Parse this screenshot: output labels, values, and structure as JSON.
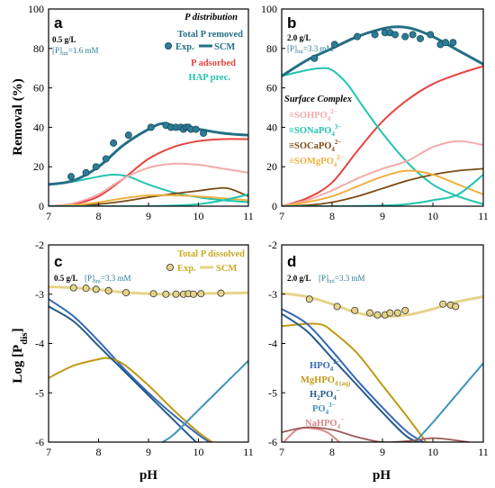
{
  "figure": {
    "xlabel": "pH",
    "ylabel_top": "Removal (%)",
    "ylabel_bottom": "Log [P",
    "ylabel_bottom_sub": "dis",
    "ylabel_bottom_end": "]"
  },
  "chart_data": [
    {
      "panel": "a",
      "type": "line",
      "letter": "a",
      "dose": "0.5 g/L",
      "conc_pre": "[P]",
      "conc_sub": "ini",
      "conc_post": "=1.6 mM",
      "xlim": [
        7,
        11
      ],
      "ylim": [
        0,
        100
      ],
      "xticks": [
        "7",
        "8",
        "9",
        "10",
        "11"
      ],
      "yticks": [
        "0",
        "20",
        "40",
        "60",
        "80",
        "100"
      ],
      "legend": {
        "heading": "P distribution",
        "total": "Total P removed",
        "exp": "Exp.",
        "scm": "SCM",
        "adsorbed": "P adsorbed",
        "hap": "HAP prec."
      },
      "colors": {
        "total": "#236f86",
        "points": "#2c7d96",
        "adsorbed": "#e8433f",
        "hap": "#22c4b0",
        "h": "#f3aaaa",
        "ca": "#7a4a12",
        "mg": "#f0b040",
        "na": "#22c4b0"
      },
      "series": [
        {
          "name": "Total P removed",
          "key": "total",
          "x": [
            7.0,
            7.5,
            8.0,
            8.5,
            9.0,
            9.3,
            9.6,
            10.0,
            10.5,
            11.0
          ],
          "y": [
            11,
            13,
            20,
            31,
            39,
            42,
            40,
            39,
            37,
            36
          ]
        },
        {
          "name": "P adsorbed",
          "key": "adsorbed",
          "x": [
            7.0,
            7.5,
            8.0,
            8.5,
            9.0,
            9.5,
            10.0,
            10.5,
            11.0
          ],
          "y": [
            0,
            1,
            5,
            14,
            24,
            30,
            33,
            34,
            34
          ]
        },
        {
          "name": "HAP prec.",
          "key": "hap",
          "x": [
            7.0,
            7.5,
            8.0,
            8.3,
            8.6,
            9.0,
            9.5,
            10.0,
            10.5,
            11.0
          ],
          "y": [
            11,
            12.5,
            15,
            16,
            15,
            11,
            7,
            4.5,
            3,
            2
          ]
        },
        {
          "key": "h",
          "x": [
            7.0,
            7.5,
            8.0,
            8.5,
            9.0,
            9.5,
            10.0,
            10.5,
            11.0
          ],
          "y": [
            0,
            1.5,
            6,
            14,
            19.5,
            21.5,
            21,
            19,
            17
          ]
        },
        {
          "key": "ca",
          "x": [
            7.0,
            7.5,
            8.0,
            8.5,
            9.0,
            9.5,
            10.0,
            10.3,
            10.6,
            11.0
          ],
          "y": [
            0,
            0.3,
            1,
            2.5,
            4.5,
            6.3,
            7.8,
            8.8,
            9,
            5
          ]
        },
        {
          "key": "mg",
          "x": [
            7.0,
            7.5,
            8.0,
            8.5,
            9.0,
            9.5,
            10.0,
            10.5,
            11.0
          ],
          "y": [
            0,
            0.5,
            2,
            4,
            5.5,
            5.5,
            5,
            4,
            3
          ]
        },
        {
          "key": "na",
          "x": [
            7.0,
            8.0,
            9.0,
            9.5,
            10.0,
            10.5,
            11.0
          ],
          "y": [
            0,
            0,
            0,
            0.3,
            1,
            3,
            6
          ]
        }
      ],
      "points": {
        "x": [
          7.45,
          7.75,
          7.95,
          8.15,
          8.3,
          8.6,
          9.05,
          9.35,
          9.45,
          9.55,
          9.65,
          9.7,
          9.75,
          9.8,
          9.85,
          9.95,
          10.1
        ],
        "y": [
          15,
          17,
          20,
          24,
          32,
          36,
          40,
          41,
          40,
          40,
          40,
          39,
          40,
          40,
          39,
          39,
          37
        ]
      }
    },
    {
      "panel": "b",
      "type": "line",
      "letter": "b",
      "dose": "2.0 g/L",
      "conc_pre": "[P]",
      "conc_sub": "ini",
      "conc_post": "=3.3 mM",
      "xlim": [
        7,
        11
      ],
      "ylim": [
        0,
        100
      ],
      "xticks": [
        "7",
        "8",
        "9",
        "10",
        "11"
      ],
      "yticks": [
        "0",
        "20",
        "40",
        "60",
        "80",
        "100"
      ],
      "legend": {
        "heading": "Surface Complex",
        "h_pre": "≡SOHPO",
        "h_sub": "4",
        "h_sup": "2−",
        "na_pre": "≡SONaPO",
        "na_sub": "4",
        "na_sup": "3−",
        "ca_pre": "≡SOCaPO",
        "ca_sub": "4",
        "ca_sup": "2−",
        "mg_pre": "≡SOMgPO",
        "mg_sub": "4",
        "mg_sup": "2−"
      },
      "colors": {
        "total": "#236f86",
        "points": "#2c7d96",
        "adsorbed": "#e8433f",
        "hap": "#22c4b0",
        "h": "#f3aaaa",
        "ca": "#7a4a12",
        "mg": "#f0b040",
        "na": "#22c4b0"
      },
      "series": [
        {
          "key": "total",
          "x": [
            7.0,
            7.5,
            8.0,
            8.5,
            9.0,
            9.3,
            9.6,
            10.0,
            10.5,
            11.0
          ],
          "y": [
            66,
            74,
            80,
            86,
            90,
            91,
            90,
            86,
            79,
            72
          ]
        },
        {
          "key": "adsorbed",
          "x": [
            7.0,
            7.5,
            8.0,
            8.5,
            9.0,
            9.5,
            10.0,
            10.5,
            11.0
          ],
          "y": [
            0,
            4,
            12,
            28,
            43,
            54,
            62,
            67,
            71
          ]
        },
        {
          "key": "hap",
          "x": [
            7.0,
            7.5,
            7.8,
            8.0,
            8.3,
            8.6,
            9.0,
            9.5,
            10.0,
            10.5,
            11.0
          ],
          "y": [
            66,
            69,
            70,
            69,
            62,
            51,
            37,
            22,
            11,
            5,
            1
          ]
        },
        {
          "key": "h",
          "x": [
            7.0,
            7.5,
            8.0,
            8.5,
            9.0,
            9.5,
            10.0,
            10.5,
            11.0
          ],
          "y": [
            0,
            3,
            8,
            14,
            19,
            23,
            30,
            33,
            31
          ]
        },
        {
          "key": "ca",
          "x": [
            7.0,
            7.5,
            8.0,
            8.5,
            9.0,
            9.5,
            10.0,
            10.5,
            11.0
          ],
          "y": [
            0,
            0.5,
            2,
            5,
            9,
            13,
            16,
            18,
            19
          ]
        },
        {
          "key": "mg",
          "x": [
            7.0,
            7.5,
            8.0,
            8.5,
            9.0,
            9.5,
            10.0,
            10.5,
            11.0
          ],
          "y": [
            0,
            2,
            5,
            10,
            15,
            18,
            16,
            11,
            6
          ]
        },
        {
          "key": "na",
          "x": [
            7.0,
            8.0,
            9.0,
            9.5,
            10.0,
            10.5,
            11.0
          ],
          "y": [
            0,
            0,
            0.3,
            1,
            3,
            6,
            16
          ]
        }
      ],
      "points": {
        "x": [
          7.65,
          8.05,
          8.5,
          8.85,
          9.05,
          9.15,
          9.25,
          9.45,
          9.6,
          9.75,
          9.95,
          10.15,
          10.25,
          10.4
        ],
        "y": [
          75,
          82,
          86,
          87,
          88,
          88,
          87,
          86,
          87,
          85,
          87,
          82,
          83,
          83
        ]
      }
    },
    {
      "panel": "c",
      "type": "line",
      "letter": "c",
      "dose": "0.5 g/L",
      "conc_pre": "[P]",
      "conc_sub": "ini",
      "conc_post": "=3.3 mM",
      "xlim": [
        7,
        11
      ],
      "ylim": [
        -6,
        -2
      ],
      "xticks": [
        "7",
        "8",
        "9",
        "10",
        "11"
      ],
      "yticks": [
        "-6",
        "-5",
        "-4",
        "-3",
        "-2"
      ],
      "legend": {
        "total": "Total P dissolved",
        "exp": "Exp.",
        "scm": "SCM"
      },
      "colors": {
        "total": "#e6d389",
        "hpo4": "#3668b8",
        "mghpo4": "#c09a14",
        "h2po4": "#235a8a",
        "po4": "#3f93b8",
        "nahpo4": "#d88a86"
      },
      "series": [
        {
          "key": "total",
          "x": [
            7.0,
            7.5,
            8.0,
            8.5,
            9.0,
            9.5,
            10.0,
            10.5,
            11.0
          ],
          "y": [
            -2.85,
            -2.87,
            -2.91,
            -2.96,
            -2.99,
            -3.0,
            -2.99,
            -2.98,
            -2.97
          ]
        },
        {
          "key": "hpo4",
          "x": [
            7.0,
            7.5,
            8.0,
            8.5,
            9.0,
            9.5,
            10.0,
            10.3
          ],
          "y": [
            -3.1,
            -3.45,
            -3.95,
            -4.5,
            -5.0,
            -5.45,
            -5.85,
            -6.05
          ]
        },
        {
          "key": "mghpo4",
          "x": [
            7.0,
            7.5,
            8.0,
            8.2,
            8.5,
            9.0,
            9.5,
            10.0,
            10.35
          ],
          "y": [
            -4.7,
            -4.45,
            -4.32,
            -4.3,
            -4.42,
            -4.85,
            -5.35,
            -5.8,
            -6.05
          ]
        },
        {
          "key": "h2po4",
          "x": [
            7.0,
            7.5,
            8.0,
            8.5,
            9.0,
            9.5,
            10.0
          ],
          "y": [
            -3.25,
            -3.55,
            -4.05,
            -4.55,
            -5.05,
            -5.55,
            -6.05
          ]
        },
        {
          "key": "po4",
          "x": [
            9.2,
            9.5,
            10.0,
            10.5,
            11.0
          ],
          "y": [
            -6.05,
            -5.85,
            -5.35,
            -4.85,
            -4.35
          ]
        }
      ],
      "points": {
        "x": [
          7.5,
          7.75,
          7.95,
          8.2,
          8.55,
          9.1,
          9.35,
          9.55,
          9.7,
          9.8,
          9.9,
          10.05,
          10.45
        ],
        "y": [
          -2.87,
          -2.88,
          -2.9,
          -2.93,
          -2.97,
          -2.99,
          -3.0,
          -3.0,
          -3.0,
          -2.99,
          -3.0,
          -2.99,
          -2.98
        ]
      }
    },
    {
      "panel": "d",
      "type": "line",
      "letter": "d",
      "dose": "2.0 g/L",
      "conc_pre": "[P]",
      "conc_sub": "ini",
      "conc_post": "=3.3 mM",
      "xlim": [
        7,
        11
      ],
      "ylim": [
        -6,
        -2
      ],
      "xticks": [
        "7",
        "8",
        "9",
        "10",
        "11"
      ],
      "yticks": [
        "-6",
        "-5",
        "-4",
        "-3",
        "-2"
      ],
      "legend": {
        "hpo4_pre": "HPO",
        "hpo4_sub": "4",
        "hpo4_sup": "2−",
        "mg_pre": "MgHPO",
        "mg_sub": "4 (aq)",
        "h2_pre": "H",
        "h2_sub1": "2",
        "h2_mid": "PO",
        "h2_sub2": "4",
        "h2_sup": "−",
        "po_pre": "PO",
        "po_sub": "4",
        "po_sup": "3−",
        "na_pre": "NaHPO",
        "na_sub": "4",
        "na_sup": "−"
      },
      "colors": {
        "total": "#e6d389",
        "hpo4": "#3668b8",
        "mghpo4": "#c09a14",
        "h2po4": "#235a8a",
        "po4": "#3f93b8",
        "nahpo4": "#d88a86",
        "ca": "#9a5a5a"
      },
      "series": [
        {
          "key": "total",
          "x": [
            7.0,
            7.5,
            8.0,
            8.5,
            9.0,
            9.5,
            10.0,
            10.5,
            11.0
          ],
          "y": [
            -2.98,
            -3.05,
            -3.2,
            -3.38,
            -3.45,
            -3.42,
            -3.3,
            -3.15,
            -3.05
          ]
        },
        {
          "key": "mghpo4",
          "x": [
            7.0,
            7.5,
            7.8,
            8.0,
            8.5,
            9.0,
            9.5,
            9.9
          ],
          "y": [
            -3.65,
            -3.6,
            -3.62,
            -3.75,
            -4.2,
            -4.85,
            -5.5,
            -6.05
          ]
        },
        {
          "key": "hpo4",
          "x": [
            7.0,
            7.5,
            8.0,
            8.5,
            9.0,
            9.5,
            9.9
          ],
          "y": [
            -3.3,
            -3.6,
            -4.15,
            -4.75,
            -5.3,
            -5.8,
            -6.05
          ]
        },
        {
          "key": "h2po4",
          "x": [
            7.0,
            7.5,
            8.0,
            8.5,
            9.0,
            9.5,
            9.9
          ],
          "y": [
            -3.4,
            -3.75,
            -4.3,
            -4.85,
            -5.4,
            -5.9,
            -6.05
          ]
        },
        {
          "key": "po4",
          "x": [
            9.6,
            10.0,
            10.5,
            11.0
          ],
          "y": [
            -6.05,
            -5.6,
            -5.0,
            -4.4
          ]
        },
        {
          "key": "nahpo4",
          "x": [
            7.0,
            7.3,
            7.6,
            7.9,
            8.2
          ],
          "y": [
            -6.05,
            -5.75,
            -5.72,
            -5.8,
            -6.05
          ]
        },
        {
          "key": "ca",
          "x": [
            7.0,
            7.5,
            8.0,
            8.5,
            9.0,
            9.5,
            10.0,
            10.5,
            11.0
          ],
          "y": [
            -5.8,
            -5.7,
            -5.75,
            -5.9,
            -6.0,
            -5.98,
            -5.92,
            -5.97,
            -6.05
          ]
        }
      ],
      "points": {
        "x": [
          7.55,
          8.1,
          8.45,
          8.75,
          8.9,
          9.05,
          9.15,
          9.3,
          9.45,
          10.2,
          10.35,
          10.45
        ],
        "y": [
          -3.1,
          -3.25,
          -3.33,
          -3.38,
          -3.42,
          -3.42,
          -3.38,
          -3.38,
          -3.33,
          -3.2,
          -3.22,
          -3.25
        ]
      }
    }
  ]
}
